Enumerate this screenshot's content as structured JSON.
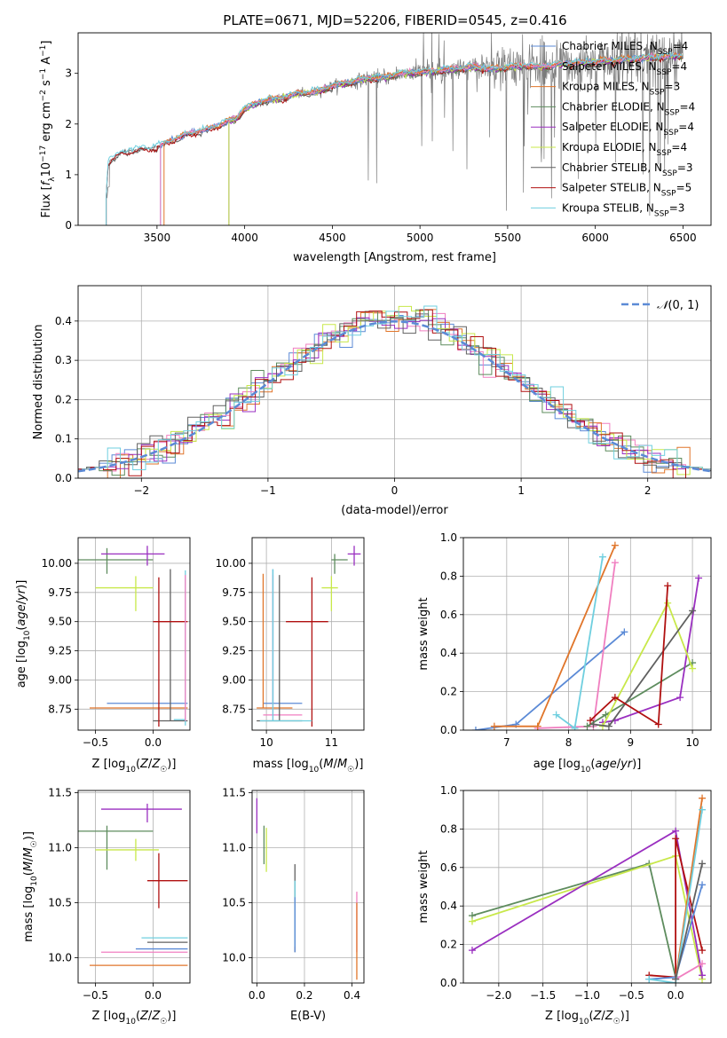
{
  "figure": {
    "title": "PLATE=0671, MJD=52206, FIBERID=0545, z=0.416",
    "colors": {
      "chabrier_miles": "#5b8ad6",
      "salpeter_miles": "#f07fc0",
      "kroupa_miles": "#e0752a",
      "chabrier_elodie": "#5e8c5e",
      "salpeter_elodie": "#9a2fc0",
      "kroupa_elodie": "#c8e84a",
      "chabrier_stelib": "#606060",
      "salpeter_stelib": "#b01010",
      "kroupa_stelib": "#6fcfdf",
      "normal_curve": "#5b8ad6"
    }
  },
  "chart_data": [
    {
      "id": "spectrum",
      "type": "line",
      "xlabel": "wavelength [Angstrom, rest frame]",
      "ylabel": "Flux [f_λ 10^-17 erg cm^-2 s^-1 A^-1]",
      "xlim": [
        3050,
        6660
      ],
      "ylim": [
        0,
        3.8
      ],
      "xticks": [
        3500,
        4000,
        4500,
        5000,
        5500,
        6000,
        6500
      ],
      "yticks": [
        0,
        1,
        2,
        3
      ],
      "legend_position": "top-right",
      "legend": [
        {
          "key": "chabrier_miles",
          "label": "Chabrier MILES, N",
          "sub": "SSP",
          "tail": "=4"
        },
        {
          "key": "salpeter_miles",
          "label": "Salpeter MILES, N",
          "sub": "SSP",
          "tail": "=4"
        },
        {
          "key": "kroupa_miles",
          "label": "Kroupa MILES, N",
          "sub": "SSP",
          "tail": "=3"
        },
        {
          "key": "chabrier_elodie",
          "label": "Chabrier ELODIE, N",
          "sub": "SSP",
          "tail": "=4"
        },
        {
          "key": "salpeter_elodie",
          "label": "Salpeter ELODIE, N",
          "sub": "SSP",
          "tail": "=4"
        },
        {
          "key": "kroupa_elodie",
          "label": "Kroupa ELODIE, N",
          "sub": "SSP",
          "tail": "=4"
        },
        {
          "key": "chabrier_stelib",
          "label": "Chabrier STELIB, N",
          "sub": "SSP",
          "tail": "=3"
        },
        {
          "key": "salpeter_stelib",
          "label": "Salpeter STELIB, N",
          "sub": "SSP",
          "tail": "=5"
        },
        {
          "key": "kroupa_stelib",
          "label": "Kroupa STELIB, N",
          "sub": "SSP",
          "tail": "=3"
        }
      ],
      "model_continuum": {
        "x": [
          3210,
          3220,
          3300,
          3400,
          3500,
          3600,
          3700,
          3800,
          3900,
          3950,
          4000,
          4100,
          4200,
          4300,
          4400,
          4500,
          4600,
          4700,
          4800,
          4900,
          5000,
          5100,
          5200,
          5300,
          5400,
          5500,
          5600,
          5700,
          5800,
          5900,
          6000,
          6100,
          6200,
          6300,
          6400,
          6500
        ],
        "y": [
          0.55,
          1.25,
          1.45,
          1.5,
          1.55,
          1.7,
          1.82,
          1.9,
          2.05,
          2.1,
          2.3,
          2.45,
          2.5,
          2.6,
          2.62,
          2.75,
          2.82,
          2.9,
          2.92,
          3.0,
          3.02,
          3.05,
          3.08,
          3.12,
          3.08,
          3.12,
          3.15,
          3.12,
          3.18,
          3.2,
          3.22,
          3.25,
          3.28,
          3.3,
          3.33,
          3.35
        ]
      },
      "model_start": {
        "chabrier_miles": 3520,
        "salpeter_miles": 3520,
        "kroupa_miles": 3540,
        "chabrier_elodie": 3910,
        "salpeter_elodie": 3910,
        "kroupa_elodie": 3910,
        "chabrier_stelib": 3210,
        "salpeter_stelib": 3210,
        "kroupa_stelib": 3210
      },
      "data_range": [
        3215,
        6500
      ]
    },
    {
      "id": "residuals",
      "type": "histogram",
      "xlabel": "(data-model)/error",
      "ylabel": "Normed distribution",
      "xlim": [
        -2.5,
        2.5
      ],
      "ylim": [
        0,
        0.49
      ],
      "xticks": [
        -2,
        -1,
        0,
        1,
        2
      ],
      "yticks": [
        0,
        0.1,
        0.2,
        0.3,
        0.4
      ],
      "bin_width": 0.1,
      "legend": [
        {
          "key": "normal_curve",
          "label": "N(0, 1)"
        }
      ],
      "legend_position": "top-right",
      "grid": true
    },
    {
      "id": "age_vs_Z",
      "type": "errorbar",
      "xlabel": "Z [log10(Z/Z☉)]",
      "ylabel": "age  [log10(age/yr)]",
      "xlim": [
        -0.65,
        0.32
      ],
      "ylim": [
        8.57,
        10.22
      ],
      "xticks": [
        -0.5,
        0.0
      ],
      "yticks": [
        8.75,
        9.0,
        9.25,
        9.5,
        9.75,
        10.0
      ],
      "points": [
        {
          "key": "chabrier_miles",
          "x": 0.05,
          "y": 8.8,
          "xerr": [
            0.45,
            0.25
          ],
          "yerr": [
            0.0,
            0.0
          ]
        },
        {
          "key": "kroupa_miles",
          "x": 0.0,
          "y": 8.76,
          "xerr": [
            0.55,
            0.3
          ],
          "yerr": [
            0.0,
            0.0
          ]
        },
        {
          "key": "chabrier_elodie",
          "x": -0.4,
          "y": 10.03,
          "xerr": [
            0.25,
            0.4
          ],
          "yerr": [
            0.12,
            0.1
          ]
        },
        {
          "key": "salpeter_elodie",
          "x": -0.05,
          "y": 10.08,
          "xerr": [
            0.4,
            0.15
          ],
          "yerr": [
            0.1,
            0.07
          ]
        },
        {
          "key": "kroupa_elodie",
          "x": -0.15,
          "y": 9.79,
          "xerr": [
            0.35,
            0.15
          ],
          "yerr": [
            0.2,
            0.1
          ]
        },
        {
          "key": "chabrier_stelib",
          "x": 0.15,
          "y": 8.65,
          "xerr": [
            0.15,
            0.15
          ],
          "yerr": [
            0.0,
            1.3
          ]
        },
        {
          "key": "salpeter_stelib",
          "x": 0.05,
          "y": 9.5,
          "xerr": [
            0.05,
            0.25
          ],
          "yerr": [
            0.9,
            0.38
          ]
        },
        {
          "key": "kroupa_stelib",
          "x": 0.28,
          "y": 8.66,
          "xerr": [
            0.1,
            0.0
          ],
          "yerr": [
            0.05,
            1.28
          ]
        },
        {
          "key": "salpeter_miles",
          "x": 0.28,
          "y": 8.7,
          "xerr": [
            0.0,
            0.0
          ],
          "yerr": [
            0.05,
            1.2
          ]
        }
      ]
    },
    {
      "id": "age_vs_mass",
      "type": "errorbar",
      "xlabel": "mass [log10(M/M☉)]",
      "ylabel": "",
      "xlim": [
        9.78,
        11.5
      ],
      "ylim": [
        8.57,
        10.22
      ],
      "xticks": [
        10,
        11
      ],
      "yticks": [
        8.75,
        9.0,
        9.25,
        9.5,
        9.75,
        10.0
      ],
      "points": [
        {
          "key": "chabrier_miles",
          "x": 10.1,
          "y": 8.8,
          "xerr": [
            0.15,
            0.45
          ],
          "yerr": [
            0.0,
            1.15
          ]
        },
        {
          "key": "kroupa_miles",
          "x": 9.95,
          "y": 8.76,
          "xerr": [
            0.1,
            0.45
          ],
          "yerr": [
            0.0,
            1.15
          ]
        },
        {
          "key": "salpeter_miles",
          "x": 10.1,
          "y": 8.7,
          "xerr": [
            0.15,
            0.45
          ],
          "yerr": [
            0.05,
            1.2
          ]
        },
        {
          "key": "chabrier_elodie",
          "x": 11.05,
          "y": 10.03,
          "xerr": [
            0.05,
            0.2
          ],
          "yerr": [
            0.12,
            0.05
          ]
        },
        {
          "key": "salpeter_elodie",
          "x": 11.35,
          "y": 10.08,
          "xerr": [
            0.1,
            0.1
          ],
          "yerr": [
            0.1,
            0.07
          ]
        },
        {
          "key": "kroupa_elodie",
          "x": 11.0,
          "y": 9.79,
          "xerr": [
            0.15,
            0.1
          ],
          "yerr": [
            0.2,
            0.1
          ]
        },
        {
          "key": "salpeter_stelib",
          "x": 10.7,
          "y": 9.5,
          "xerr": [
            0.4,
            0.25
          ],
          "yerr": [
            0.9,
            0.38
          ]
        },
        {
          "key": "chabrier_stelib",
          "x": 10.2,
          "y": 8.65,
          "xerr": [
            0.35,
            0.35
          ],
          "yerr": [
            0.0,
            1.25
          ]
        },
        {
          "key": "kroupa_stelib",
          "x": 10.1,
          "y": 8.65,
          "xerr": [
            0.2,
            0.6
          ],
          "yerr": [
            0.0,
            1.3
          ]
        }
      ]
    },
    {
      "id": "mass_weight_vs_age",
      "type": "line",
      "xlabel": "age  [log10(age/yr)]",
      "ylabel": "mass weight",
      "xlim": [
        6.3,
        10.3
      ],
      "ylim": [
        0,
        1.0
      ],
      "xticks": [
        7,
        8,
        9,
        10
      ],
      "yticks": [
        0.0,
        0.2,
        0.4,
        0.6,
        0.8,
        1.0
      ],
      "series": [
        {
          "key": "chabrier_miles",
          "x": [
            6.5,
            7.15,
            8.9
          ],
          "y": [
            0.0,
            0.03,
            0.51
          ]
        },
        {
          "key": "salpeter_miles",
          "x": [
            7.5,
            8.4,
            8.75
          ],
          "y": [
            0.01,
            0.02,
            0.87
          ]
        },
        {
          "key": "kroupa_miles",
          "x": [
            6.8,
            7.5,
            8.75
          ],
          "y": [
            0.02,
            0.02,
            0.96
          ]
        },
        {
          "key": "chabrier_elodie",
          "x": [
            8.3,
            8.6,
            10.0
          ],
          "y": [
            0.02,
            0.08,
            0.35
          ]
        },
        {
          "key": "salpeter_elodie",
          "x": [
            8.55,
            8.75,
            9.8,
            10.1
          ],
          "y": [
            0.04,
            0.05,
            0.17,
            0.79
          ]
        },
        {
          "key": "kroupa_elodie",
          "x": [
            8.55,
            9.6,
            10.0
          ],
          "y": [
            0.02,
            0.66,
            0.32
          ]
        },
        {
          "key": "chabrier_stelib",
          "x": [
            8.4,
            8.65,
            10.0
          ],
          "y": [
            0.03,
            0.02,
            0.62
          ]
        },
        {
          "key": "salpeter_stelib",
          "x": [
            8.35,
            8.75,
            9.45,
            9.6
          ],
          "y": [
            0.05,
            0.17,
            0.03,
            0.75
          ]
        },
        {
          "key": "kroupa_stelib",
          "x": [
            7.8,
            8.1,
            8.55
          ],
          "y": [
            0.08,
            0.01,
            0.9
          ]
        }
      ]
    },
    {
      "id": "mass_vs_Z",
      "type": "errorbar",
      "xlabel": "Z [log10(Z/Z☉)]",
      "ylabel": "mass [log10(M/M☉)]",
      "xlim": [
        -0.65,
        0.32
      ],
      "ylim": [
        9.77,
        11.52
      ],
      "xticks": [
        -0.5,
        0.0
      ],
      "yticks": [
        10.0,
        10.5,
        11.0,
        11.5
      ],
      "points": [
        {
          "key": "chabrier_miles",
          "x": 0.05,
          "y": 10.08,
          "xerr": [
            0.2,
            0.25
          ],
          "yerr": [
            0.0,
            0.0
          ]
        },
        {
          "key": "salpeter_miles",
          "x": -0.05,
          "y": 10.05,
          "xerr": [
            0.4,
            0.35
          ],
          "yerr": [
            0.0,
            0.0
          ]
        },
        {
          "key": "kroupa_miles",
          "x": 0.0,
          "y": 9.93,
          "xerr": [
            0.55,
            0.3
          ],
          "yerr": [
            0.0,
            0.0
          ]
        },
        {
          "key": "chabrier_elodie",
          "x": -0.4,
          "y": 11.15,
          "xerr": [
            0.25,
            0.4
          ],
          "yerr": [
            0.35,
            0.05
          ]
        },
        {
          "key": "salpeter_elodie",
          "x": -0.05,
          "y": 11.35,
          "xerr": [
            0.4,
            0.3
          ],
          "yerr": [
            0.12,
            0.05
          ]
        },
        {
          "key": "kroupa_elodie",
          "x": -0.15,
          "y": 10.98,
          "xerr": [
            0.35,
            0.2
          ],
          "yerr": [
            0.1,
            0.1
          ]
        },
        {
          "key": "chabrier_stelib",
          "x": 0.1,
          "y": 10.14,
          "xerr": [
            0.15,
            0.2
          ],
          "yerr": [
            0.0,
            0.0
          ]
        },
        {
          "key": "salpeter_stelib",
          "x": 0.05,
          "y": 10.7,
          "xerr": [
            0.1,
            0.25
          ],
          "yerr": [
            0.25,
            0.25
          ]
        },
        {
          "key": "kroupa_stelib",
          "x": 0.0,
          "y": 10.18,
          "xerr": [
            0.1,
            0.3
          ],
          "yerr": [
            0.0,
            0.0
          ]
        }
      ]
    },
    {
      "id": "mass_vs_ebv",
      "type": "errorbar",
      "xlabel": "E(B-V)",
      "ylabel": "",
      "xlim": [
        -0.02,
        0.45
      ],
      "ylim": [
        9.77,
        11.52
      ],
      "xticks": [
        0.0,
        0.2,
        0.4
      ],
      "yticks": [
        10.0,
        10.5,
        11.0,
        11.5
      ],
      "points": [
        {
          "key": "salpeter_elodie",
          "x": 0.0,
          "y": 11.25,
          "xerr": [
            0,
            0
          ],
          "yerr": [
            0.12,
            0.2
          ]
        },
        {
          "key": "kroupa_elodie",
          "x": 0.04,
          "y": 10.98,
          "xerr": [
            0,
            0
          ],
          "yerr": [
            0.2,
            0.2
          ]
        },
        {
          "key": "chabrier_elodie",
          "x": 0.03,
          "y": 11.0,
          "xerr": [
            0,
            0
          ],
          "yerr": [
            0.15,
            0.2
          ]
        },
        {
          "key": "chabrier_stelib",
          "x": 0.16,
          "y": 10.4,
          "xerr": [
            0,
            0
          ],
          "yerr": [
            0.35,
            0.45
          ]
        },
        {
          "key": "kroupa_stelib",
          "x": 0.16,
          "y": 10.5,
          "xerr": [
            0,
            0
          ],
          "yerr": [
            0.4,
            0.2
          ]
        },
        {
          "key": "chabrier_miles",
          "x": 0.16,
          "y": 10.3,
          "xerr": [
            0,
            0
          ],
          "yerr": [
            0.25,
            0.25
          ]
        },
        {
          "key": "salpeter_miles",
          "x": 0.42,
          "y": 10.3,
          "xerr": [
            0,
            0
          ],
          "yerr": [
            0.25,
            0.3
          ]
        },
        {
          "key": "kroupa_miles",
          "x": 0.42,
          "y": 10.2,
          "xerr": [
            0,
            0
          ],
          "yerr": [
            0.4,
            0.3
          ]
        }
      ]
    },
    {
      "id": "mass_weight_vs_Z",
      "type": "line",
      "xlabel": "Z [log10(Z/Z☉)]",
      "ylabel": "mass weight",
      "xlim": [
        -2.4,
        0.4
      ],
      "ylim": [
        0,
        1.0
      ],
      "xticks": [
        -2.0,
        -1.5,
        -1.0,
        -0.5,
        0.0
      ],
      "yticks": [
        0.0,
        0.2,
        0.4,
        0.6,
        0.8,
        1.0
      ],
      "series": [
        {
          "key": "chabrier_elodie",
          "x": [
            -2.3,
            -0.3,
            0.0
          ],
          "y": [
            0.35,
            0.62,
            0.03
          ]
        },
        {
          "key": "kroupa_elodie",
          "x": [
            -2.3,
            0.0,
            0.3
          ],
          "y": [
            0.32,
            0.66,
            0.02
          ]
        },
        {
          "key": "salpeter_elodie",
          "x": [
            -2.3,
            0.0,
            0.3
          ],
          "y": [
            0.17,
            0.79,
            0.04
          ]
        },
        {
          "key": "salpeter_stelib",
          "x": [
            -0.3,
            0.0,
            0.0,
            0.3
          ],
          "y": [
            0.04,
            0.03,
            0.75,
            0.17
          ]
        },
        {
          "key": "chabrier_miles",
          "x": [
            -0.3,
            0.0,
            0.3
          ],
          "y": [
            0.02,
            0.03,
            0.51
          ]
        },
        {
          "key": "kroupa_miles",
          "x": [
            0.0,
            0.3
          ],
          "y": [
            0.02,
            0.96
          ]
        },
        {
          "key": "salpeter_miles",
          "x": [
            0.0,
            0.3
          ],
          "y": [
            0.02,
            0.1
          ]
        },
        {
          "key": "kroupa_stelib",
          "x": [
            -0.3,
            0.0,
            0.3
          ],
          "y": [
            0.02,
            0.0,
            0.9
          ]
        },
        {
          "key": "chabrier_stelib",
          "x": [
            0.0,
            0.3
          ],
          "y": [
            0.02,
            0.62
          ]
        }
      ]
    }
  ]
}
